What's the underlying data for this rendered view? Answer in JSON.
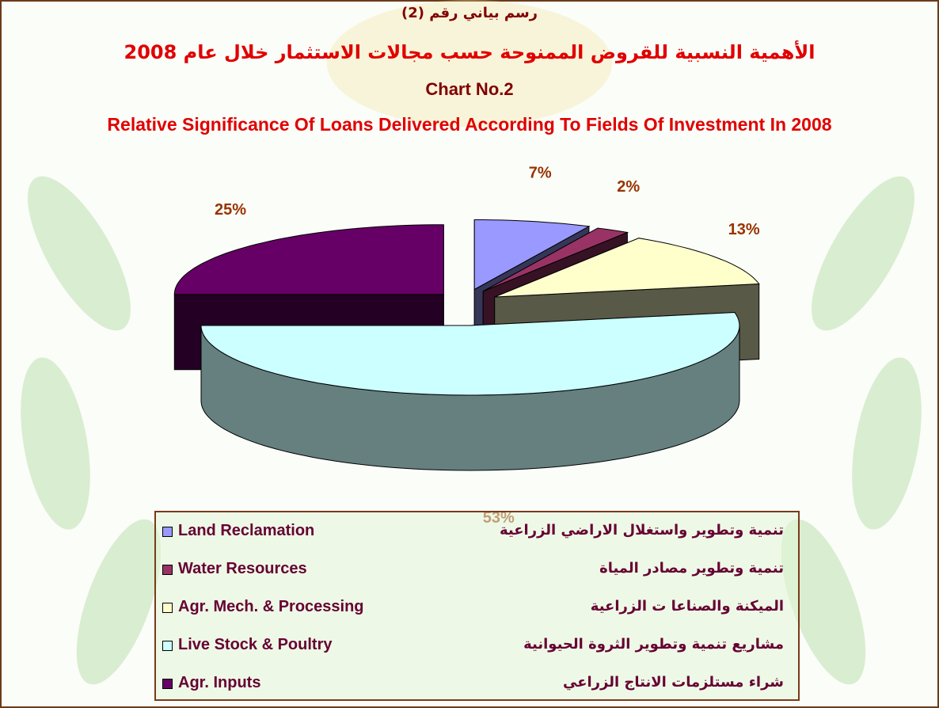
{
  "chart_data": {
    "type": "pie",
    "subtitle_top": "رسم بياني رقم (2)",
    "title_arabic": "الأهمية النسبية للقروض الممنوحة حسب مجالات الاستثمار خلال عام 2008",
    "chart_number": "Chart No.2",
    "title": "Relative Significance Of Loans Delivered According To Fields Of Investment In 2008",
    "categories": [
      "Land Reclamation",
      "Water Resources",
      "Agr. Mech. & Processing",
      "Live Stock & Poultry",
      "Agr. Inputs"
    ],
    "categories_arabic": [
      "تنمية وتطوير واستغلال الاراضي الزراعية",
      "تنمية وتطوير مصادر المياة",
      "الميكنة والصناعا ت الزراعية",
      "مشاريع تنمية وتطوير الثروة الحيوانية",
      "شراء  مستلزمات الانتاج الزراعي"
    ],
    "values": [
      7,
      2,
      13,
      53,
      25
    ],
    "value_labels": [
      "7%",
      "2%",
      "13%",
      "53%",
      "25%"
    ],
    "colors": [
      "#9999ff",
      "#993366",
      "#ffffcc",
      "#ccffff",
      "#660066"
    ]
  }
}
